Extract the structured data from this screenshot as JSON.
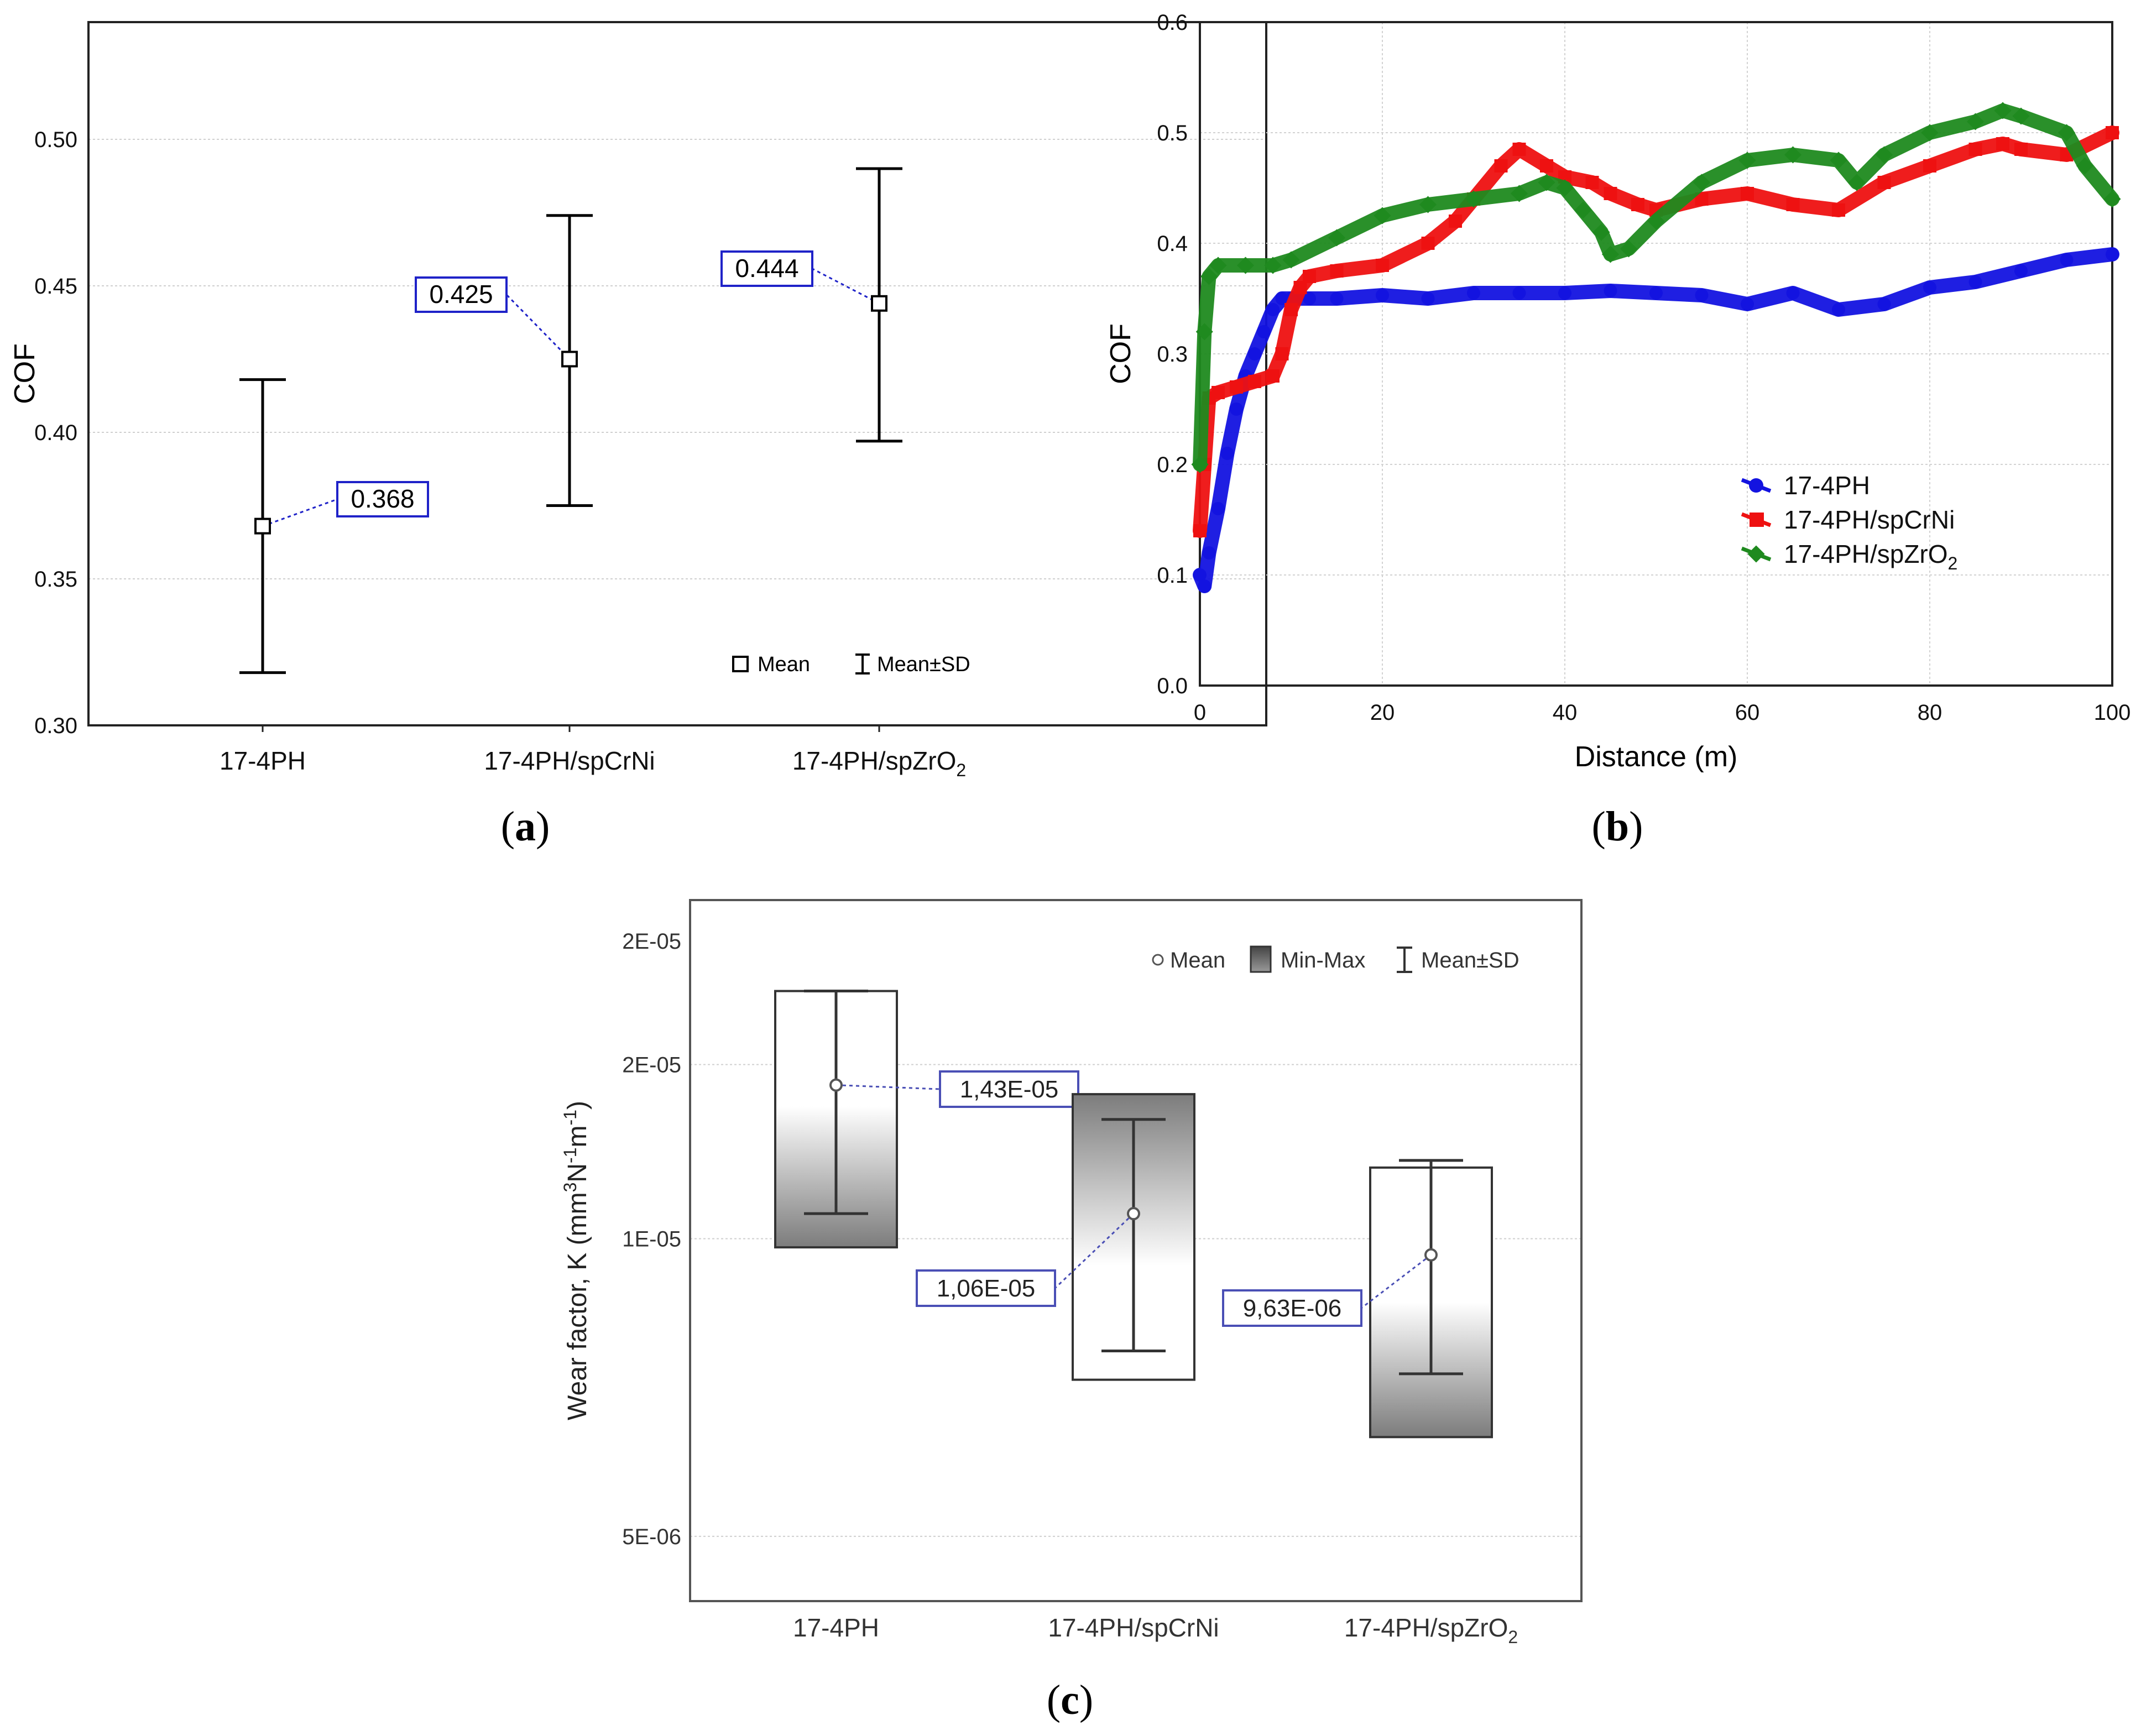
{
  "panel_labels": {
    "a": "a",
    "b": "b",
    "c": "c"
  },
  "chart_data": [
    {
      "type": "errorbar",
      "panel": "a",
      "title": "",
      "xlabel": "",
      "ylabel": "COF",
      "categories": [
        "17-4PH",
        "17-4PH/spCrNi",
        "17-4PH/spZrO2"
      ],
      "mean": [
        0.368,
        0.425,
        0.444
      ],
      "lower": [
        0.318,
        0.375,
        0.397
      ],
      "upper": [
        0.418,
        0.474,
        0.49
      ],
      "annotations": [
        "0.368",
        "0.425",
        "0.444"
      ],
      "ylim": [
        0.3,
        0.54
      ],
      "yticks": [
        0.3,
        0.35,
        0.4,
        0.45,
        0.5
      ],
      "ytick_labels": [
        "0.30",
        "0.35",
        "0.40",
        "0.45",
        "0.50"
      ],
      "legend": {
        "position": "bottom-right",
        "mean_label": "Mean",
        "sd_label": "Mean±SD"
      },
      "grid": true,
      "colors": {
        "annotation_border": "#1f22c8",
        "bar": "#000000"
      }
    },
    {
      "type": "line",
      "panel": "b",
      "title": "",
      "xlabel": "Distance (m)",
      "ylabel": "COF",
      "xlim": [
        0,
        100
      ],
      "ylim": [
        0,
        0.6
      ],
      "xticks": [
        0,
        20,
        40,
        60,
        80,
        100
      ],
      "yticks": [
        0,
        0.1,
        0.2,
        0.3,
        0.4,
        0.5,
        0.6
      ],
      "ytick_labels": [
        "0.0",
        "0.1",
        "0.2",
        "0.3",
        "0.4",
        "0.5",
        "0.6"
      ],
      "grid": true,
      "legend": {
        "position": "center-right"
      },
      "series": [
        {
          "name": "17-4PH",
          "color": "#1313e0",
          "x": [
            0,
            0.5,
            1,
            2,
            3,
            4,
            5,
            6,
            7,
            8,
            9,
            10,
            12,
            15,
            20,
            25,
            30,
            35,
            40,
            45,
            50,
            55,
            60,
            65,
            70,
            75,
            80,
            85,
            90,
            95,
            100
          ],
          "y": [
            0.1,
            0.09,
            0.12,
            0.16,
            0.21,
            0.25,
            0.28,
            0.3,
            0.32,
            0.34,
            0.35,
            0.35,
            0.35,
            0.35,
            0.353,
            0.35,
            0.355,
            0.355,
            0.355,
            0.357,
            0.355,
            0.353,
            0.345,
            0.355,
            0.34,
            0.345,
            0.36,
            0.365,
            0.375,
            0.385,
            0.39
          ]
        },
        {
          "name": "17-4PH/spCrNi",
          "color": "#ee1111",
          "x": [
            0,
            0.5,
            1,
            2,
            4,
            6,
            8,
            9,
            10,
            11,
            12,
            15,
            20,
            25,
            28,
            30,
            33,
            35,
            38,
            40,
            43,
            45,
            48,
            50,
            55,
            60,
            65,
            70,
            75,
            80,
            85,
            88,
            90,
            95,
            100
          ],
          "y": [
            0.14,
            0.2,
            0.26,
            0.265,
            0.27,
            0.275,
            0.28,
            0.3,
            0.34,
            0.36,
            0.37,
            0.375,
            0.38,
            0.4,
            0.42,
            0.44,
            0.47,
            0.485,
            0.47,
            0.46,
            0.455,
            0.445,
            0.435,
            0.43,
            0.44,
            0.445,
            0.435,
            0.43,
            0.455,
            0.47,
            0.485,
            0.49,
            0.485,
            0.48,
            0.5
          ]
        },
        {
          "name": "17-4PH/spZrO2",
          "color": "#1f8a1f",
          "x": [
            0,
            0.5,
            1,
            2,
            5,
            8,
            10,
            15,
            20,
            25,
            30,
            35,
            38,
            40,
            42,
            44,
            45,
            47,
            50,
            55,
            60,
            65,
            70,
            72,
            75,
            80,
            85,
            88,
            90,
            95,
            97,
            100
          ],
          "y": [
            0.2,
            0.32,
            0.37,
            0.38,
            0.38,
            0.38,
            0.385,
            0.405,
            0.425,
            0.435,
            0.44,
            0.445,
            0.455,
            0.45,
            0.43,
            0.41,
            0.39,
            0.395,
            0.42,
            0.455,
            0.475,
            0.48,
            0.475,
            0.455,
            0.48,
            0.5,
            0.51,
            0.52,
            0.515,
            0.5,
            0.47,
            0.44
          ]
        }
      ]
    },
    {
      "type": "boxplot",
      "panel": "c",
      "title": "",
      "xlabel": "",
      "ylabel": "Wear factor, K (mm3N-1m-1)",
      "categories": [
        "17-4PH",
        "17-4PH/spCrNi",
        "17-4PH/spZrO2"
      ],
      "mean": [
        1.43e-05,
        1.06e-05,
        9.63e-06
      ],
      "sd_low": [
        1.06e-05,
        7.7e-06,
        7.3e-06
      ],
      "sd_high": [
        1.78e-05,
        1.32e-05,
        1.2e-05
      ],
      "min": [
        9.8e-06,
        7.2e-06,
        6.3e-06
      ],
      "max": [
        1.78e-05,
        1.4e-05,
        1.18e-05
      ],
      "annotations": [
        "1,43E-05",
        "1,06E-05",
        "9,63E-06"
      ],
      "ytick_labels": [
        "5E-06",
        "1E-05",
        "2E-05",
        "2E-05"
      ],
      "legend": {
        "position": "top-right",
        "mean_label": "Mean",
        "minmax_label": "Min-Max",
        "sd_label": "Mean±SD"
      },
      "grid": true,
      "colors": {
        "annotation_border": "#4a4fb5",
        "box_dark": "#7a7a7a",
        "box_light": "#ffffff"
      }
    }
  ]
}
